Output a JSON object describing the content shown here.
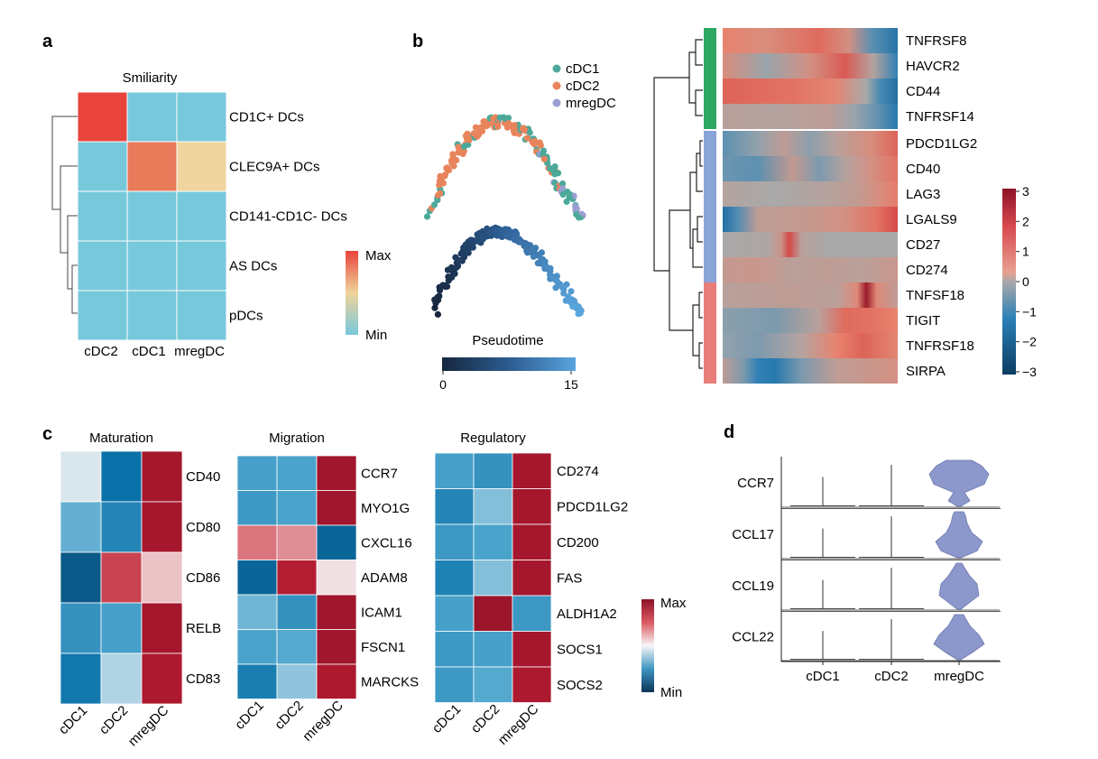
{
  "panel_labels": {
    "a": "a",
    "b": "b",
    "c": "c",
    "d": "d"
  },
  "colors": {
    "teal": "#4ca99a",
    "orange": "#e8845c",
    "lavender": "#9a9fd2",
    "bar_green": "#2fa864",
    "bar_blue": "#8aa4d8",
    "bar_red": "#e77e7a",
    "violin": "#8c98cc"
  },
  "chart_data": [
    {
      "id": "a",
      "type": "heatmap",
      "title": "Smiliarity",
      "rows": [
        "CD1C+ DCs",
        "CLEC9A+ DCs",
        "CD141-CD1C- DCs",
        "AS DCs",
        "pDCs"
      ],
      "columns": [
        "cDC2",
        "cDC1",
        "mregDC"
      ],
      "values": [
        [
          1.0,
          0.0,
          0.0
        ],
        [
          0.0,
          0.82,
          0.42
        ],
        [
          0.0,
          0.0,
          0.0
        ],
        [
          0.0,
          0.0,
          0.0
        ],
        [
          0.0,
          0.0,
          0.0
        ]
      ],
      "colorbar": {
        "max_label": "Max",
        "min_label": "Min"
      },
      "row_dendrogram": true
    },
    {
      "id": "b-trajectory",
      "type": "scatter",
      "legend": [
        "cDC1",
        "cDC2",
        "mregDC"
      ],
      "colorbar": {
        "title": "Pseudotime",
        "min": 0,
        "max": 15,
        "ticks": [
          "0",
          "15"
        ]
      }
    },
    {
      "id": "b-heatmap",
      "type": "heatmap",
      "genes": [
        "TNFRSF8",
        "HAVCR2",
        "CD44",
        "TNFRSF14",
        "PDCD1LG2",
        "CD40",
        "LAG3",
        "LGALS9",
        "CD27",
        "CD274",
        "TNFSF18",
        "TIGIT",
        "TNFRSF18",
        "SIRPA"
      ],
      "clusters": [
        {
          "color_key": "bar_green",
          "genes": 4
        },
        {
          "color_key": "bar_blue",
          "genes": 6
        },
        {
          "color_key": "bar_red",
          "genes": 4
        }
      ],
      "profiles": [
        [
          [
            0,
            1.2
          ],
          [
            0.25,
            0.9
          ],
          [
            0.55,
            1.5
          ],
          [
            0.72,
            0.8
          ],
          [
            0.85,
            -1.0
          ],
          [
            1,
            -1.9
          ]
        ],
        [
          [
            0,
            0.9
          ],
          [
            0.25,
            -0.2
          ],
          [
            0.5,
            0.8
          ],
          [
            0.7,
            1.7
          ],
          [
            0.86,
            0.2
          ],
          [
            1,
            -1.6
          ]
        ],
        [
          [
            0,
            1.6
          ],
          [
            0.4,
            1.4
          ],
          [
            0.65,
            1.1
          ],
          [
            0.82,
            0.0
          ],
          [
            0.9,
            -1.3
          ],
          [
            1,
            -2.0
          ]
        ],
        [
          [
            0,
            0.3
          ],
          [
            0.3,
            0.2
          ],
          [
            0.6,
            0.4
          ],
          [
            0.75,
            -0.2
          ],
          [
            0.88,
            -0.9
          ],
          [
            1,
            -1.8
          ]
        ],
        [
          [
            0,
            -1.0
          ],
          [
            0.2,
            -0.3
          ],
          [
            0.35,
            0.4
          ],
          [
            0.5,
            -0.4
          ],
          [
            0.65,
            0.3
          ],
          [
            0.85,
            0.9
          ],
          [
            1,
            1.6
          ]
        ],
        [
          [
            0,
            -0.8
          ],
          [
            0.2,
            -1.0
          ],
          [
            0.4,
            0.5
          ],
          [
            0.55,
            -0.6
          ],
          [
            0.7,
            0.2
          ],
          [
            0.85,
            0.8
          ],
          [
            1,
            1.4
          ]
        ],
        [
          [
            0,
            0.2
          ],
          [
            0.3,
            0.0
          ],
          [
            0.55,
            0.2
          ],
          [
            0.75,
            0.4
          ],
          [
            0.9,
            0.9
          ],
          [
            1,
            1.3
          ]
        ],
        [
          [
            0,
            -2.0
          ],
          [
            0.08,
            -1.2
          ],
          [
            0.2,
            0.4
          ],
          [
            0.45,
            0.5
          ],
          [
            0.7,
            0.8
          ],
          [
            0.88,
            1.4
          ],
          [
            1,
            1.9
          ]
        ],
        [
          [
            0,
            0.0
          ],
          [
            0.25,
            0.1
          ],
          [
            0.33,
            0.6
          ],
          [
            0.38,
            1.9
          ],
          [
            0.45,
            0.3
          ],
          [
            0.6,
            0.0
          ],
          [
            1,
            0.0
          ]
        ],
        [
          [
            0,
            0.5
          ],
          [
            0.2,
            0.6
          ],
          [
            0.4,
            0.3
          ],
          [
            0.6,
            0.4
          ],
          [
            0.8,
            0.3
          ],
          [
            1,
            0.6
          ]
        ],
        [
          [
            0,
            0.3
          ],
          [
            0.4,
            0.4
          ],
          [
            0.65,
            0.3
          ],
          [
            0.77,
            1.0
          ],
          [
            0.82,
            2.8
          ],
          [
            0.88,
            1.0
          ],
          [
            1,
            0.4
          ]
        ],
        [
          [
            0,
            -0.4
          ],
          [
            0.3,
            -0.6
          ],
          [
            0.55,
            0.3
          ],
          [
            0.7,
            1.5
          ],
          [
            0.85,
            1.4
          ],
          [
            1,
            1.2
          ]
        ],
        [
          [
            0,
            -0.3
          ],
          [
            0.2,
            -0.6
          ],
          [
            0.45,
            0.2
          ],
          [
            0.65,
            1.2
          ],
          [
            0.8,
            1.6
          ],
          [
            1,
            1.1
          ]
        ],
        [
          [
            0,
            0.4
          ],
          [
            0.12,
            -0.6
          ],
          [
            0.2,
            -1.6
          ],
          [
            0.3,
            -1.8
          ],
          [
            0.45,
            -0.6
          ],
          [
            0.65,
            0.4
          ],
          [
            1,
            0.8
          ]
        ]
      ],
      "colorbar": {
        "ticks": [
          3,
          2,
          1,
          0,
          -1,
          -2,
          -3
        ],
        "tick_labels": [
          "3",
          "2",
          "1",
          "0",
          "−1",
          "−2",
          "−3"
        ],
        "range": [
          -3,
          3
        ]
      }
    },
    {
      "id": "c-maturation",
      "type": "heatmap",
      "title": "Maturation",
      "genes": [
        "CD40",
        "CD80",
        "CD86",
        "RELB",
        "CD83"
      ],
      "columns": [
        "cDC1",
        "cDC2",
        "mregDC"
      ],
      "values": [
        [
          0.47,
          0.1,
          0.95
        ],
        [
          0.3,
          0.16,
          0.95
        ],
        [
          0.06,
          0.82,
          0.58
        ],
        [
          0.2,
          0.24,
          0.95
        ],
        [
          0.12,
          0.42,
          0.93
        ]
      ]
    },
    {
      "id": "c-migration",
      "type": "heatmap",
      "title": "Migration",
      "genes": [
        "CCR7",
        "MYO1G",
        "CXCL16",
        "ADAM8",
        "ICAM1",
        "FSCN1",
        "MARCKS"
      ],
      "columns": [
        "cDC1",
        "cDC2",
        "mregDC"
      ],
      "values": [
        [
          0.24,
          0.25,
          0.96
        ],
        [
          0.22,
          0.25,
          0.96
        ],
        [
          0.72,
          0.67,
          0.08
        ],
        [
          0.08,
          0.91,
          0.53
        ],
        [
          0.32,
          0.2,
          0.96
        ],
        [
          0.25,
          0.27,
          0.96
        ],
        [
          0.14,
          0.38,
          0.93
        ]
      ]
    },
    {
      "id": "c-regulatory",
      "type": "heatmap",
      "title": "Regulatory",
      "genes": [
        "CD274",
        "PDCD1LG2",
        "CD200",
        "FAS",
        "ALDH1A2",
        "SOCS1",
        "SOCS2"
      ],
      "columns": [
        "cDC1",
        "cDC2",
        "mregDC"
      ],
      "values": [
        [
          0.24,
          0.2,
          0.95
        ],
        [
          0.16,
          0.36,
          0.95
        ],
        [
          0.22,
          0.25,
          0.95
        ],
        [
          0.15,
          0.36,
          0.95
        ],
        [
          0.24,
          0.97,
          0.22
        ],
        [
          0.22,
          0.24,
          0.95
        ],
        [
          0.22,
          0.27,
          0.93
        ]
      ],
      "colorbar": {
        "max_label": "Max",
        "min_label": "Min"
      }
    },
    {
      "id": "d",
      "type": "violin",
      "genes": [
        "CCR7",
        "CCL17",
        "CCL19",
        "CCL22"
      ],
      "groups": [
        "cDC1",
        "cDC2",
        "mregDC"
      ]
    }
  ]
}
